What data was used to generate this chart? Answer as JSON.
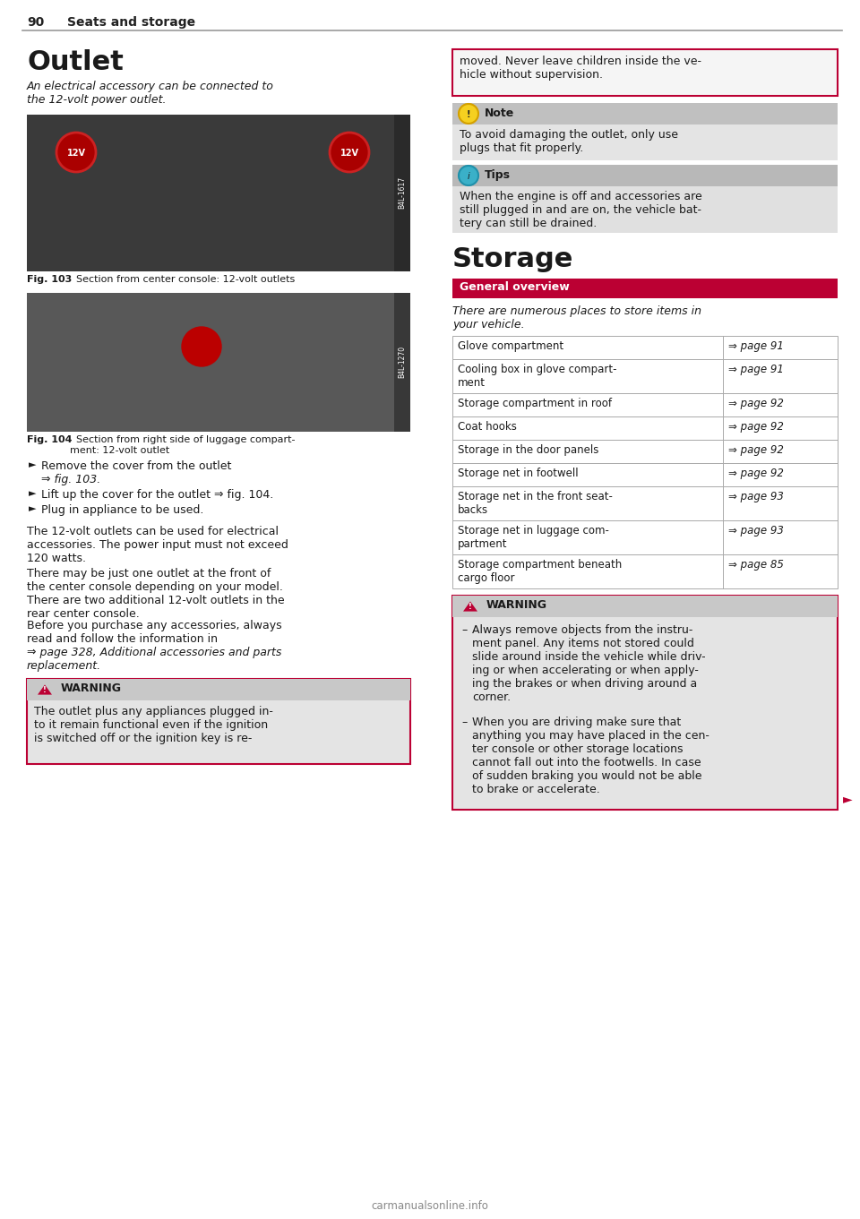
{
  "page_num": "90",
  "section_title": "Seats and storage",
  "bg_color": "#ffffff",
  "outlet_title": "Outlet",
  "outlet_body": "An electrical accessory can be connected to\nthe 12-volt power outlet.",
  "fig103_caption_bold": "Fig. 103",
  "fig103_caption_rest": "  Section from center console: 12-volt outlets",
  "fig104_caption_bold": "Fig. 104",
  "fig104_caption_rest": "  Section from right side of luggage compart-\nment: 12-volt outlet",
  "bullet1a": "► Remove the cover from the outlet",
  "bullet1b": "    ⇒ fig. 103.",
  "bullet2": "► Lift up the cover for the outlet ⇒ fig. 104.",
  "bullet3": "► Plug in appliance to be used.",
  "body_text_1": "The 12-volt outlets can be used for electrical\naccessories. The power input must not exceed\n120 watts.",
  "body_text_2": "There may be just one outlet at the front of\nthe center console depending on your model.\nThere are two additional 12-volt outlets in the\nrear center console.",
  "body_text_3a": "Before you purchase any accessories, always\nread and follow the information in",
  "body_text_3b": "⇒ page 328, Additional accessories and parts\nreplacement.",
  "warning_box_1_title": "WARNING",
  "warning_box_1_text": "The outlet plus any appliances plugged in-\nto it remain functional even if the ignition\nis switched off or the ignition key is re-",
  "right_top_box_text": "moved. Never leave children inside the ve-\nhicle without supervision.",
  "note_title": "Note",
  "note_text": "To avoid damaging the outlet, only use\nplugs that fit properly.",
  "tips_title": "Tips",
  "tips_text": "When the engine is off and accessories are\nstill plugged in and are on, the vehicle bat-\ntery can still be drained.",
  "storage_title": "Storage",
  "general_overview_label": "General overview",
  "general_overview_bg": "#bb0033",
  "general_overview_text_color": "#ffffff",
  "storage_intro": "There are numerous places to store items in\nyour vehicle.",
  "table_rows": [
    [
      "Glove compartment",
      "⇒ page 91"
    ],
    [
      "Cooling box in glove compart-\nment",
      "⇒ page 91"
    ],
    [
      "Storage compartment in roof",
      "⇒ page 92"
    ],
    [
      "Coat hooks",
      "⇒ page 92"
    ],
    [
      "Storage in the door panels",
      "⇒ page 92"
    ],
    [
      "Storage net in footwell",
      "⇒ page 92"
    ],
    [
      "Storage net in the front seat-\nbacks",
      "⇒ page 93"
    ],
    [
      "Storage net in luggage com-\npartment",
      "⇒ page 93"
    ],
    [
      "Storage compartment beneath\ncargo floor",
      "⇒ page 85"
    ]
  ],
  "warning_box_2_title": "WARNING",
  "warning_box_2_text_1": "Always remove objects from the instru-\nment panel. Any items not stored could\nslide around inside the vehicle while driv-\ning or when accelerating or when apply-\ning the brakes or when driving around a\ncorner.",
  "warning_box_2_text_2": "When you are driving make sure that\nanything you may have placed in the cen-\nter console or other storage locations\ncannot fall out into the footwells. In case\nof sudden braking you would not be able\nto brake or accelerate.",
  "footer_text": "carmanualsonline.info",
  "warning_border": "#bb0033",
  "warning_header_bg": "#c8c8c8",
  "warning_body_bg": "#e4e4e4",
  "note_header_bg": "#c0c0c0",
  "note_body_bg": "#e4e4e4",
  "tips_header_bg": "#b8b8b8",
  "tips_body_bg": "#e0e0e0",
  "table_border": "#aaaaaa",
  "img1_bg": "#3a3a3a",
  "img2_bg": "#4a4a4a",
  "label_strip_bg": "#2a2a2a"
}
